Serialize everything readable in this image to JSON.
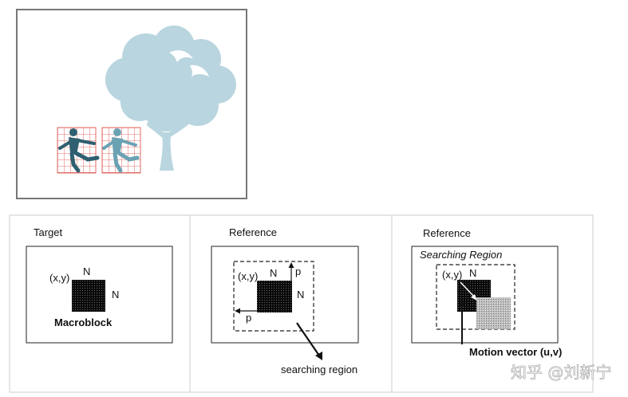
{
  "illustration": {
    "figures": [
      "running-person",
      "running-person"
    ],
    "colors": {
      "frame": "#777777",
      "tree": "#b9d5df",
      "person_dark": "#2f5f70",
      "person_light": "#6aa2b4",
      "grid": "#d9463e"
    }
  },
  "panels": [
    {
      "title": "Target",
      "coord_label": "(x,y)",
      "n_top": "N",
      "n_side": "N",
      "caption": "Macroblock"
    },
    {
      "title": "Reference",
      "coord_label": "(x,y)",
      "n_top": "N",
      "n_side": "N",
      "p_top": "p",
      "p_left": "p",
      "pointer_label": "searching region"
    },
    {
      "title": "Reference",
      "region_label": "Searching  Region",
      "coord_label": "(x,y)",
      "n_top": "N",
      "pointer_label": "Motion vector (u,v)"
    }
  ],
  "watermark": "知乎 @刘新宁"
}
